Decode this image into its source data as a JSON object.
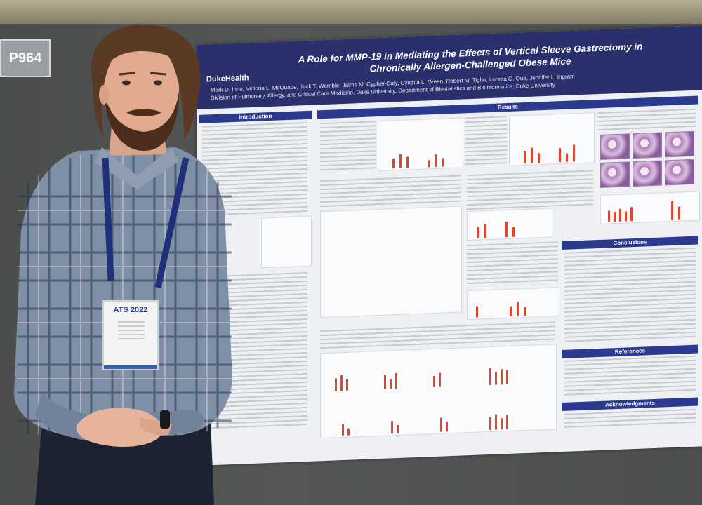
{
  "booth_sign": "P964",
  "poster": {
    "logo": "DukeHealth",
    "title_line1": "A Role for MMP-19 in Mediating the Effects of Vertical Sleeve Gastrectomy in",
    "title_line2": "Chronically Allergen-Challenged Obese Mice",
    "authors": "Mark D. Ihrie, Victoria L. McQuade, Jack T. Womble, Jaime M. Cypher-Daly, Cynthia L. Green, Robert M. Tighe, Loretta G. Que, Jennifer L. Ingram",
    "affiliation": "Division of Pulmonary, Allergy, and Critical Care Medicine, Duke University, Department of Biostatistics and Bioinformatics, Duke University",
    "sections": {
      "introduction": "Introduction",
      "results": "Results",
      "conclusions": "Conclusions",
      "references": "References",
      "acknowledgments": "Acknowledgments"
    }
  },
  "badge": {
    "event": "ATS 2022"
  }
}
